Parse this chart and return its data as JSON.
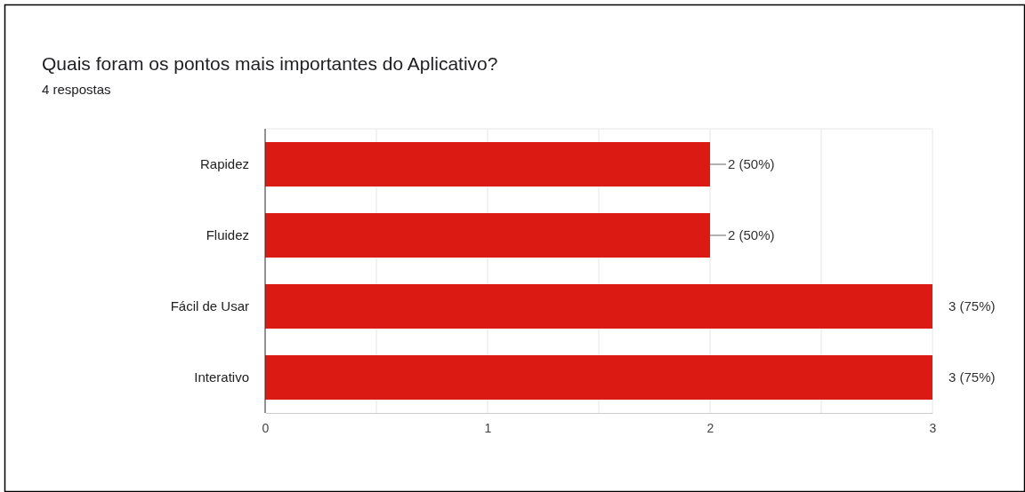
{
  "chart_data": {
    "type": "bar",
    "orientation": "horizontal",
    "title": "Quais foram os pontos mais importantes do Aplicativo?",
    "subtitle": "4 respostas",
    "categories": [
      "Rapidez",
      "Fluidez",
      "Fácil de Usar",
      "Interativo"
    ],
    "values": [
      2,
      2,
      3,
      3
    ],
    "color": "#db1a13",
    "value_labels": [
      "2 (50%)",
      "2 (50%)",
      "3 (75%)",
      "3 (75%)"
    ],
    "xlim": [
      0,
      3
    ],
    "xticks": [
      0,
      {
        "value": 0.5,
        "label": null
      },
      1,
      {
        "value": 1.5,
        "label": null
      },
      2,
      {
        "value": 2.5,
        "label": null
      },
      3
    ],
    "grid": "x"
  }
}
